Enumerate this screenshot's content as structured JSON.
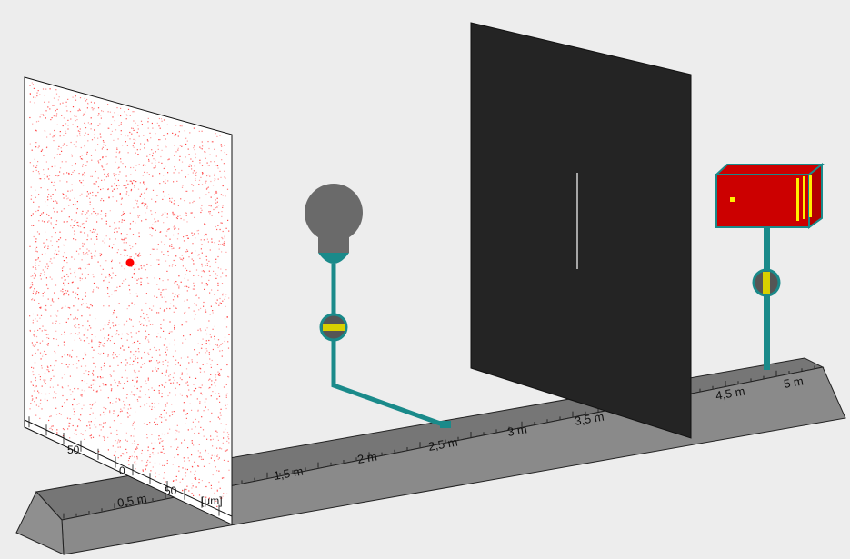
{
  "rail": {
    "ticks": [
      "0,5 m",
      "1,5 m",
      "2 m",
      "2,5 m",
      "3 m",
      "3,5 m",
      "4,5 m",
      "5 m"
    ]
  },
  "screen_ticks": {
    "labels": [
      "50",
      "0",
      "50"
    ],
    "unit": "[µm]"
  },
  "colors": {
    "background": "#ededed",
    "rail": "#808080",
    "rail_top": "#767676",
    "dots": "#ff2020",
    "stand": "#1a8a8a",
    "slit_screen": "#242424",
    "laser_body": "#cc0000",
    "laser_accent": "#ffee00",
    "bulb": "#6a6a6a"
  },
  "icons": {
    "light_bulb": "bulb-icon",
    "laser": "laser-box-icon",
    "knob": "adjust-knob-icon"
  }
}
